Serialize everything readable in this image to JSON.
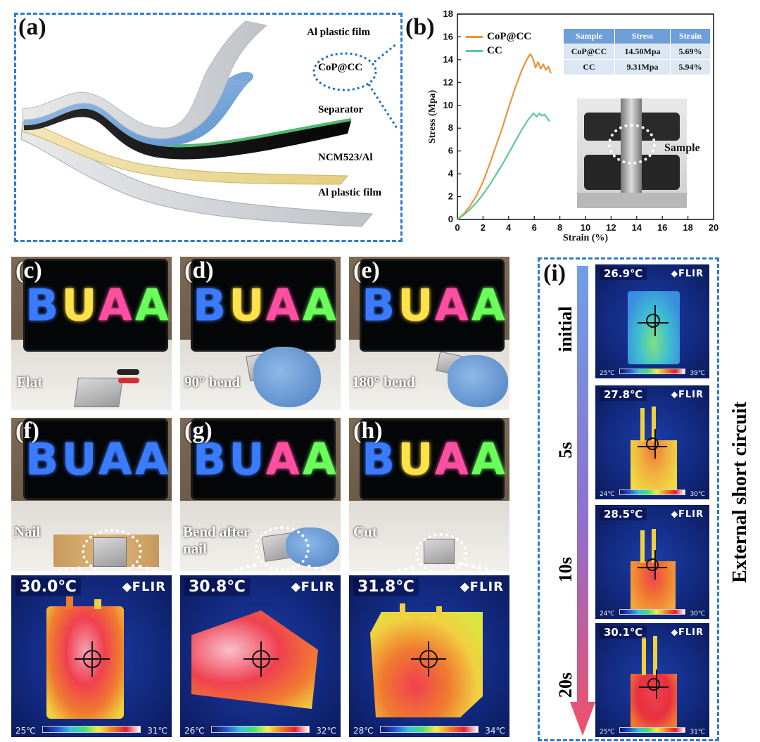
{
  "panel_a": {
    "label": "(a)",
    "layers": [
      "Al plastic film",
      "CoP@CC",
      "Separator",
      "NCM523/Al",
      "Al plastic film"
    ]
  },
  "panel_b": {
    "label": "(b)",
    "sample_label": "Sample",
    "table": {
      "headers": [
        "Sample",
        "Stress",
        "Strain"
      ],
      "rows": [
        [
          "CoP@CC",
          "14.50Mpa",
          "5.69%"
        ],
        [
          "CC",
          "9.31Mpa",
          "5.94%"
        ]
      ]
    }
  },
  "chart_data": {
    "type": "line",
    "title": "",
    "xlabel": "Strain (%)",
    "ylabel": "Stress (Mpa)",
    "xlim": [
      0,
      20
    ],
    "ylim": [
      0,
      18
    ],
    "xticks": [
      0,
      2,
      4,
      6,
      8,
      10,
      12,
      14,
      16,
      18,
      20
    ],
    "yticks": [
      0,
      2,
      4,
      6,
      8,
      10,
      12,
      14,
      16,
      18
    ],
    "legend_position": "top-left",
    "series": [
      {
        "name": "CoP@CC",
        "color": "#f0913c",
        "x": [
          0,
          0.5,
          1,
          1.5,
          2,
          2.5,
          3,
          3.5,
          4,
          4.5,
          5,
          5.4,
          5.69,
          5.9,
          6.1,
          6.3,
          6.5,
          6.7,
          6.9,
          7.1,
          7.3
        ],
        "y": [
          0,
          0.5,
          1.2,
          2.1,
          3.3,
          4.8,
          6.4,
          8.0,
          9.8,
          11.5,
          13.0,
          14.0,
          14.5,
          14.1,
          13.3,
          13.8,
          13.2,
          13.6,
          13.1,
          13.4,
          12.8
        ]
      },
      {
        "name": "CC",
        "color": "#5cc99a",
        "x": [
          0,
          0.5,
          1,
          1.5,
          2,
          2.5,
          3,
          3.5,
          4,
          4.5,
          5,
          5.5,
          5.94,
          6.2,
          6.4,
          6.6,
          6.8,
          7.0,
          7.2
        ],
        "y": [
          0,
          0.4,
          0.9,
          1.5,
          2.2,
          3.0,
          3.9,
          4.8,
          5.8,
          6.8,
          7.8,
          8.7,
          9.31,
          9.0,
          9.3,
          9.1,
          9.2,
          8.9,
          8.6
        ]
      }
    ]
  },
  "photos": [
    {
      "label": "(c)",
      "caption": "Flat"
    },
    {
      "label": "(d)",
      "caption": "90° bend"
    },
    {
      "label": "(e)",
      "caption": "180° bend"
    },
    {
      "label": "(f)",
      "caption": "Nail"
    },
    {
      "label": "(g)",
      "caption": "Bend after nail"
    },
    {
      "label": "(h)",
      "caption": "Cut"
    }
  ],
  "screen_text": "BUAA",
  "flir_brand": "FLIR",
  "bottom_thermals": [
    {
      "temp": "30.0℃",
      "low": "25℃",
      "high": "31℃"
    },
    {
      "temp": "30.8℃",
      "low": "26℃",
      "high": "32℃"
    },
    {
      "temp": "31.8℃",
      "low": "28℃",
      "high": "34℃"
    }
  ],
  "panel_i": {
    "label": "(i)",
    "side_title": "External short circuit",
    "time_labels": [
      "initial",
      "5s",
      "10s",
      "20s"
    ],
    "thermals": [
      {
        "temp": "26.9℃",
        "low": "25℃",
        "high": "39℃"
      },
      {
        "temp": "27.8℃",
        "low": "24℃",
        "high": "30℃"
      },
      {
        "temp": "28.5℃",
        "low": "24℃",
        "high": "30℃"
      },
      {
        "temp": "30.1℃",
        "low": "25℃",
        "high": "31℃"
      }
    ]
  }
}
